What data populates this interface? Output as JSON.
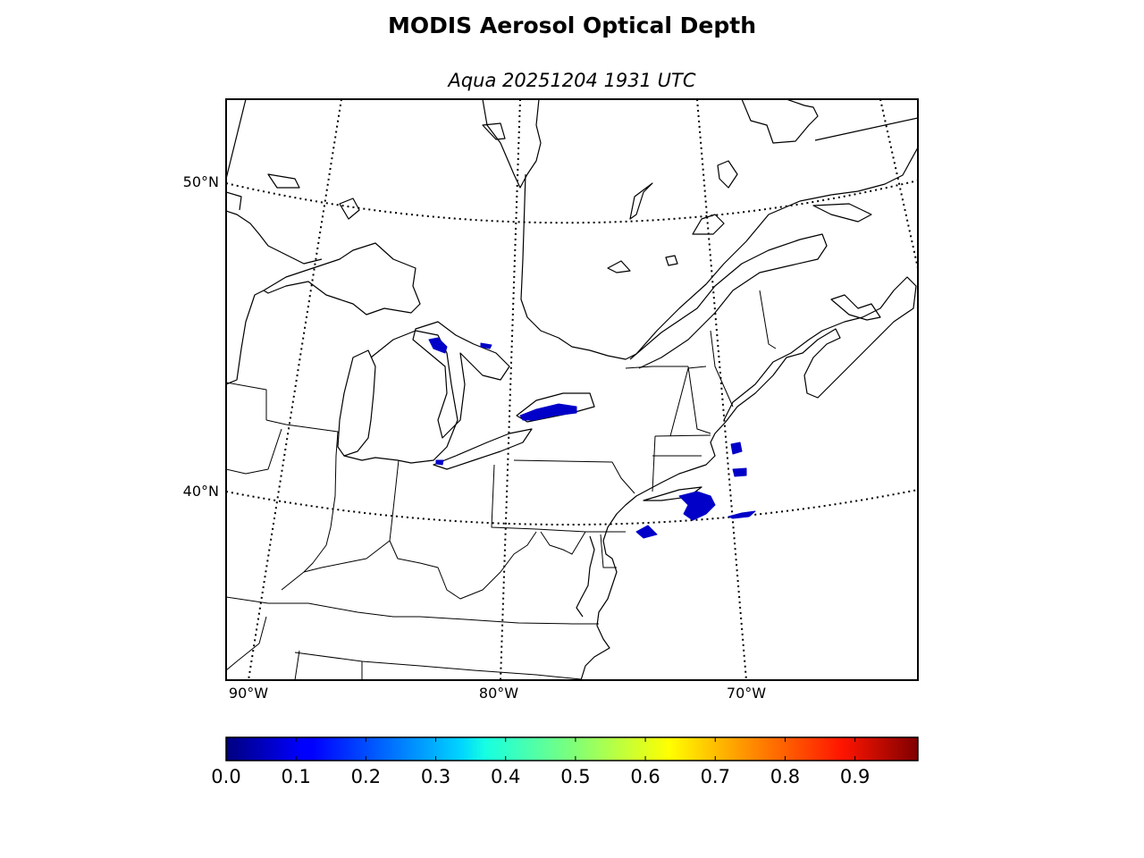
{
  "title": "MODIS Aerosol Optical Depth",
  "subtitle": "Aqua 20251204 1931 UTC",
  "parallel_labels": [
    {
      "id": "lat50",
      "text": "50°N"
    },
    {
      "id": "lat40",
      "text": "40°N"
    }
  ],
  "meridian_labels": [
    {
      "id": "lon90",
      "text": "90°W"
    },
    {
      "id": "lon80",
      "text": "80°W"
    },
    {
      "id": "lon70",
      "text": "70°W"
    }
  ],
  "colorbar": {
    "colormap": "jet",
    "min": 0.0,
    "max": 0.99,
    "ticks": [
      "0.0",
      "0.1",
      "0.2",
      "0.3",
      "0.4",
      "0.5",
      "0.6",
      "0.7",
      "0.8",
      "0.9"
    ],
    "colors": [
      "#00007f",
      "#0000ff",
      "#007fff",
      "#00ffff",
      "#7fff7f",
      "#ffff00",
      "#ff7f00",
      "#ff0000",
      "#7f0000"
    ]
  },
  "aerosol_color": "#0000c8"
}
